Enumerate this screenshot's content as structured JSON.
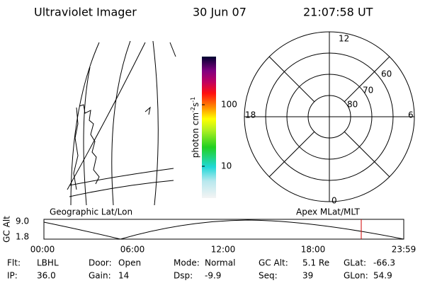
{
  "header": {
    "title": "Ultraviolet Imager",
    "date": "30 Jun 07",
    "time": "21:07:58 UT"
  },
  "colorbar": {
    "label": {
      "unit": "photon cm",
      "exp1": "-2",
      "mid": "s",
      "exp2": "-1"
    },
    "ticks": [
      "100",
      "10"
    ]
  },
  "polar": {
    "mlt_labels": [
      "12",
      "6",
      "18",
      "0"
    ],
    "lat_labels": [
      "60",
      "70",
      "80"
    ]
  },
  "map_label": "Geographic Lat/Lon",
  "polar_label": "Apex MLat/MLT",
  "altitude": {
    "axis_label": "GC Alt",
    "yticks": [
      "9.0",
      "1.8"
    ],
    "xticks": [
      "00:00",
      "06:00",
      "12:00",
      "18:00",
      "23:59"
    ]
  },
  "footer": {
    "rows": [
      [
        {
          "label": "Flt:",
          "value": "LBHL"
        },
        {
          "label": "Door:",
          "value": "Open"
        },
        {
          "label": "Mode:",
          "value": "Normal"
        },
        {
          "label": "GC Alt:",
          "value": "5.1 Re"
        },
        {
          "label": "GLat:",
          "value": "-66.3"
        }
      ],
      [
        {
          "label": "IP:",
          "value": "36.0"
        },
        {
          "label": "Gain:",
          "value": "14"
        },
        {
          "label": "Dsp:",
          "value": "-9.9"
        },
        {
          "label": "Seq:",
          "value": "39"
        },
        {
          "label": "GLon:",
          "value": "54.9"
        }
      ]
    ]
  }
}
